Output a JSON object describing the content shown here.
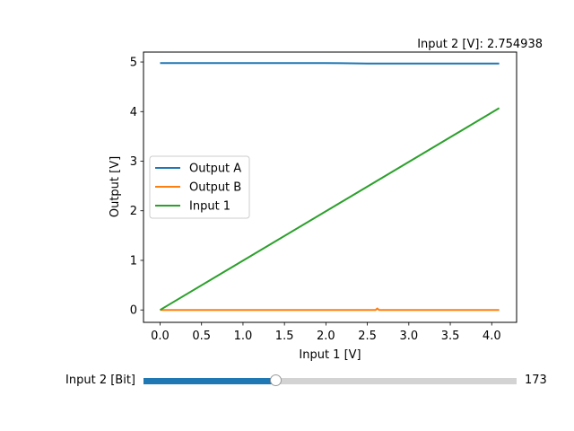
{
  "cursor_readout": "Input 2 [V]: 2.754938",
  "slider": {
    "label": "Input 2 [Bit]",
    "value": 173,
    "value_text": "173",
    "min": 0,
    "max": 489,
    "fill_color": "#1f77b4",
    "track_color": "#d3d3d3"
  },
  "chart_data": {
    "type": "line",
    "xlabel": "Input 1 [V]",
    "ylabel": "Output [V]",
    "xlim": [
      -0.2,
      4.3
    ],
    "ylim": [
      -0.25,
      5.2
    ],
    "xticks": [
      0.0,
      0.5,
      1.0,
      1.5,
      2.0,
      2.5,
      3.0,
      3.5,
      4.0
    ],
    "xtick_labels": [
      "0.0",
      "0.5",
      "1.0",
      "1.5",
      "2.0",
      "2.5",
      "3.0",
      "3.5",
      "4.0"
    ],
    "yticks": [
      0,
      1,
      2,
      3,
      4,
      5
    ],
    "ytick_labels": [
      "0",
      "1",
      "2",
      "3",
      "4",
      "5"
    ],
    "grid": false,
    "legend_position": "center-left",
    "series": [
      {
        "name": "Output A",
        "color": "#1f77b4",
        "x": [
          0.0,
          0.5,
          1.0,
          1.5,
          2.0,
          2.5,
          3.0,
          3.5,
          4.09
        ],
        "y": [
          4.98,
          4.98,
          4.98,
          4.98,
          4.98,
          4.97,
          4.97,
          4.97,
          4.97
        ]
      },
      {
        "name": "Output B",
        "color": "#ff7f0e",
        "x": [
          0.0,
          0.5,
          1.0,
          1.5,
          2.0,
          2.5,
          2.6,
          2.62,
          2.64,
          3.0,
          3.5,
          4.09
        ],
        "y": [
          0.0,
          0.0,
          0.0,
          0.0,
          0.0,
          0.0,
          0.0,
          0.03,
          0.0,
          0.0,
          0.0,
          0.0
        ]
      },
      {
        "name": "Input 1",
        "color": "#2ca02c",
        "x": [
          0.0,
          4.09
        ],
        "y": [
          0.0,
          4.07
        ]
      }
    ]
  }
}
